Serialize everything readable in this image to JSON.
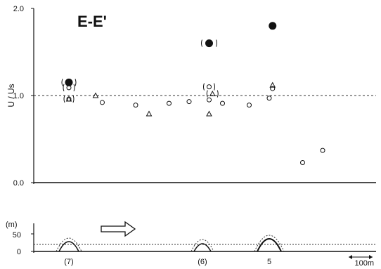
{
  "chart_data": [
    {
      "type": "scatter",
      "title": "E-E'",
      "ylabel": "U / Us",
      "ylim": [
        0.0,
        2.0
      ],
      "yticks": [
        "0.0",
        "1.0",
        "2.0"
      ],
      "reference_line": 1.0,
      "series": [
        {
          "marker": "circle",
          "points": [
            {
              "x": 0.0,
              "y": 1.09
            },
            {
              "x": 0.0,
              "y": 0.96
            },
            {
              "x": 0.5,
              "y": 0.92
            },
            {
              "x": 1.0,
              "y": 0.89
            },
            {
              "x": 1.5,
              "y": 0.91
            },
            {
              "x": 1.8,
              "y": 0.93
            },
            {
              "x": 2.1,
              "y": 0.95
            },
            {
              "x": 2.1,
              "y": 1.1
            },
            {
              "x": 2.3,
              "y": 0.91
            },
            {
              "x": 2.7,
              "y": 0.89
            },
            {
              "x": 3.0,
              "y": 0.97
            },
            {
              "x": 3.05,
              "y": 1.08
            },
            {
              "x": 3.5,
              "y": 0.23
            },
            {
              "x": 3.8,
              "y": 0.37
            }
          ]
        },
        {
          "marker": "triangle",
          "points": [
            {
              "x": 0.0,
              "y": 0.96
            },
            {
              "x": 0.4,
              "y": 1.0
            },
            {
              "x": 1.2,
              "y": 0.79
            },
            {
              "x": 2.1,
              "y": 0.79
            },
            {
              "x": 2.15,
              "y": 1.02
            },
            {
              "x": 3.05,
              "y": 1.12
            }
          ]
        },
        {
          "marker": "filled-circle",
          "points": [
            {
              "x": 0.0,
              "y": 1.15
            },
            {
              "x": 2.1,
              "y": 1.6
            },
            {
              "x": 3.05,
              "y": 1.8
            }
          ]
        }
      ]
    },
    {
      "type": "area",
      "ylabel": "(m)",
      "yticks": [
        "0",
        "50"
      ],
      "categories": [
        "(7)",
        "(6)",
        "5"
      ],
      "scale_label": "100m"
    }
  ]
}
